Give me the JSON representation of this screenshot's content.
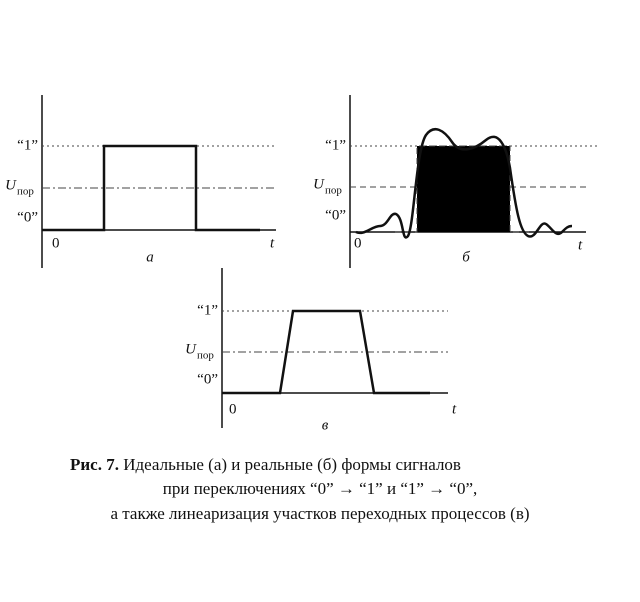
{
  "panels": [
    {
      "one": "“1”",
      "u": "U",
      "u_sub": "пор",
      "zero": "“0”",
      "origin": "0",
      "axis": "t",
      "letter": "а"
    },
    {
      "one": "“1”",
      "u": "U",
      "u_sub": "пор",
      "zero": "“0”",
      "origin": "0",
      "axis": "t",
      "letter": "б"
    },
    {
      "one": "“1”",
      "u": "U",
      "u_sub": "пор",
      "zero": "“0”",
      "origin": "0",
      "axis": "t",
      "letter": "в"
    }
  ],
  "caption": {
    "label": "Рис. 7.",
    "lines": [
      " Идеальные (а) и реальные (б) формы сигналов",
      "при переключениях “0” → “1”  и  “1” → “0”,",
      "а также линеаризация участков переходных процессов (в)"
    ]
  }
}
